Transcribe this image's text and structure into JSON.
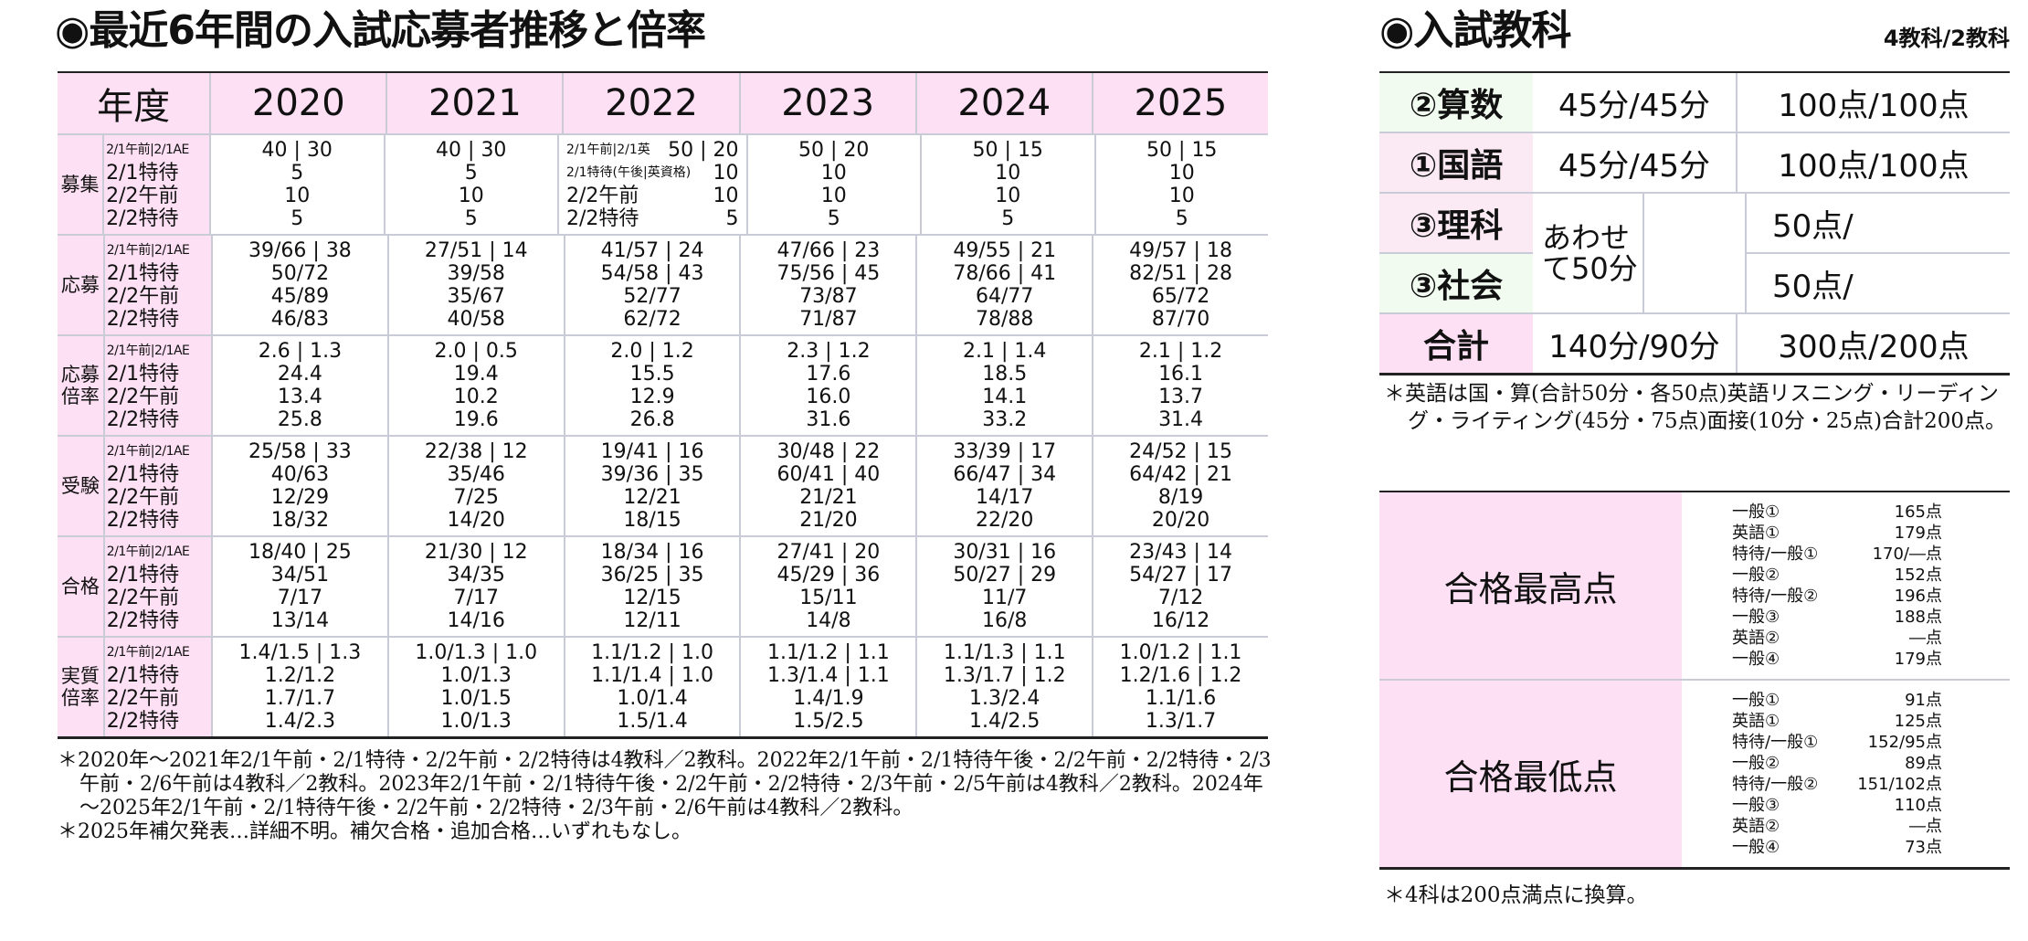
{
  "left": {
    "title": "◉最近6年間の入試応募者推移と倍率",
    "header": {
      "label": "年度",
      "years": [
        "2020",
        "2021",
        "2022",
        "2023",
        "2024",
        "2025"
      ]
    },
    "groups": [
      {
        "label": "募集",
        "sublabels": [
          "2/1午前|2/1AE",
          "2/1特待",
          "2/2午前",
          "2/2特待"
        ],
        "values": [
          [
            "40 | 30",
            "5",
            "10",
            "5"
          ],
          [
            "40 | 30",
            "5",
            "10",
            "5"
          ],
          [
            "50 | 20",
            "10",
            "10",
            "5"
          ],
          [
            "50 | 20",
            "10",
            "10",
            "5"
          ],
          [
            "50 | 15",
            "10",
            "10",
            "5"
          ],
          [
            "50 | 15",
            "10",
            "10",
            "5"
          ]
        ],
        "special_2022_labels": [
          "2/1午前|2/1英",
          "2/1特待(午後|英資格)",
          "2/2午前",
          "2/2特待"
        ]
      },
      {
        "label": "応募",
        "sublabels": [
          "2/1午前|2/1AE",
          "2/1特待",
          "2/2午前",
          "2/2特待"
        ],
        "values": [
          [
            "39/66 | 38",
            "50/72",
            "45/89",
            "46/83"
          ],
          [
            "27/51 | 14",
            "39/58",
            "35/67",
            "40/58"
          ],
          [
            "41/57 | 24",
            "54/58 | 43",
            "52/77",
            "62/72"
          ],
          [
            "47/66 | 23",
            "75/56 | 45",
            "73/87",
            "71/87"
          ],
          [
            "49/55 | 21",
            "78/66 | 41",
            "64/77",
            "78/88"
          ],
          [
            "49/57 | 18",
            "82/51 | 28",
            "65/72",
            "87/70"
          ]
        ]
      },
      {
        "label": "応募倍率",
        "sublabels": [
          "2/1午前|2/1AE",
          "2/1特待",
          "2/2午前",
          "2/2特待"
        ],
        "values": [
          [
            "2.6 | 1.3",
            "24.4",
            "13.4",
            "25.8"
          ],
          [
            "2.0 | 0.5",
            "19.4",
            "10.2",
            "19.6"
          ],
          [
            "2.0 | 1.2",
            "15.5",
            "12.9",
            "26.8"
          ],
          [
            "2.3 | 1.2",
            "17.6",
            "16.0",
            "31.6"
          ],
          [
            "2.1 | 1.4",
            "18.5",
            "14.1",
            "33.2"
          ],
          [
            "2.1 | 1.2",
            "16.1",
            "13.7",
            "31.4"
          ]
        ]
      },
      {
        "label": "受験",
        "sublabels": [
          "2/1午前|2/1AE",
          "2/1特待",
          "2/2午前",
          "2/2特待"
        ],
        "values": [
          [
            "25/58 | 33",
            "40/63",
            "12/29",
            "18/32"
          ],
          [
            "22/38 | 12",
            "35/46",
            "7/25",
            "14/20"
          ],
          [
            "19/41 | 16",
            "39/36 | 35",
            "12/21",
            "18/15"
          ],
          [
            "30/48 | 22",
            "60/41 | 40",
            "21/21",
            "21/20"
          ],
          [
            "33/39 | 17",
            "66/47 | 34",
            "14/17",
            "22/20"
          ],
          [
            "24/52 | 15",
            "64/42 | 21",
            "8/19",
            "20/20"
          ]
        ]
      },
      {
        "label": "合格",
        "sublabels": [
          "2/1午前|2/1AE",
          "2/1特待",
          "2/2午前",
          "2/2特待"
        ],
        "values": [
          [
            "18/40 | 25",
            "34/51",
            "7/17",
            "13/14"
          ],
          [
            "21/30 | 12",
            "34/35",
            "7/17",
            "14/16"
          ],
          [
            "18/34 | 16",
            "36/25 | 35",
            "12/15",
            "12/11"
          ],
          [
            "27/41 | 20",
            "45/29 | 36",
            "15/11",
            "14/8"
          ],
          [
            "30/31 | 16",
            "50/27 | 29",
            "11/7",
            "16/8"
          ],
          [
            "23/43 | 14",
            "54/27 | 17",
            "7/12",
            "16/12"
          ]
        ]
      },
      {
        "label": "実質倍率",
        "sublabels": [
          "2/1午前|2/1AE",
          "2/1特待",
          "2/2午前",
          "2/2特待"
        ],
        "values": [
          [
            "1.4/1.5 | 1.3",
            "1.2/1.2",
            "1.7/1.7",
            "1.4/2.3"
          ],
          [
            "1.0/1.3 | 1.0",
            "1.0/1.3",
            "1.0/1.5",
            "1.0/1.3"
          ],
          [
            "1.1/1.2 | 1.0",
            "1.1/1.4 | 1.0",
            "1.0/1.4",
            "1.5/1.4"
          ],
          [
            "1.1/1.2 | 1.1",
            "1.3/1.4 | 1.1",
            "1.4/1.9",
            "1.5/2.5"
          ],
          [
            "1.1/1.3 | 1.1",
            "1.3/1.7 | 1.2",
            "1.3/2.4",
            "1.4/2.5"
          ],
          [
            "1.0/1.2 | 1.1",
            "1.2/1.6 | 1.2",
            "1.1/1.6",
            "1.3/1.7"
          ]
        ]
      }
    ],
    "notes": [
      "＊2020年～2021年2/1午前・2/1特待・2/2午前・2/2特待は4教科／2教科。2022年2/1午前・2/1特待午後・2/2午前・2/2特待・2/3午前・2/6午前は4教科／2教科。2023年2/1午前・2/1特待午後・2/2午前・2/2特待・2/3午前・2/5午前は4教科／2教科。2024年～2025年2/1午前・2/1特待午後・2/2午前・2/2特待・2/3午前・2/6午前は4教科／2教科。",
      "＊2025年補欠発表…詳細不明。補欠合格・追加合格…いずれもなし。"
    ]
  },
  "right": {
    "title": "◉入試教科",
    "subtitle": "4教科/2教科",
    "subjects": [
      {
        "name": "②算数",
        "time": "45分/45分",
        "points": "100点/100点"
      },
      {
        "name": "①国語",
        "time": "45分/45分",
        "points": "100点/100点"
      },
      {
        "name": "③理科",
        "points": "50点/"
      },
      {
        "name": "③社会",
        "points": "50点/"
      }
    ],
    "combined_time": "あわせて50分",
    "total": {
      "name": "合計",
      "time": "140分/90分",
      "points": "300点/200点"
    },
    "english_note": "＊英語は国・算(合計50分・各50点)英語リスニング・リーディング・ライティング(45分・75点)面接(10分・25点)合計200点。",
    "scores": [
      {
        "label": "合格最高点",
        "items": [
          [
            "一般①",
            "165点"
          ],
          [
            "英語①",
            "179点"
          ],
          [
            "特待/一般①",
            "170/―点"
          ],
          [
            "一般②",
            "152点"
          ],
          [
            "特待/一般②",
            "196点"
          ],
          [
            "一般③",
            "188点"
          ],
          [
            "英語②",
            "―点"
          ],
          [
            "一般④",
            "179点"
          ]
        ]
      },
      {
        "label": "合格最低点",
        "items": [
          [
            "一般①",
            "91点"
          ],
          [
            "英語①",
            "125点"
          ],
          [
            "特待/一般①",
            "152/95点"
          ],
          [
            "一般②",
            "89点"
          ],
          [
            "特待/一般②",
            "151/102点"
          ],
          [
            "一般③",
            "110点"
          ],
          [
            "英語②",
            "―点"
          ],
          [
            "一般④",
            "73点"
          ]
        ]
      }
    ],
    "score_note": "＊4科は200点満点に換算。"
  },
  "colors": {
    "pink_header": "#fde0f4",
    "green_row": "#f1fbef",
    "pink_row": "#fbeaf3",
    "grid": "#c9ccd6",
    "rule": "#222222"
  }
}
